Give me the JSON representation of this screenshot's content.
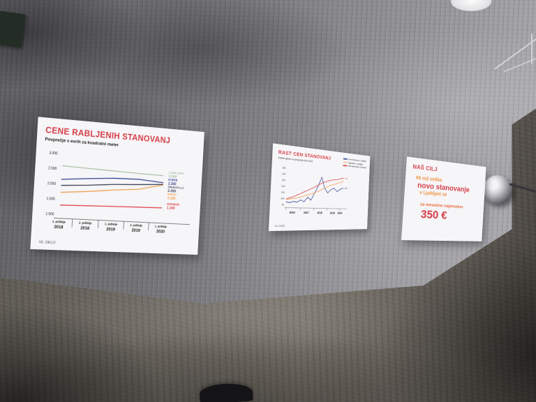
{
  "colors": {
    "accent_red": "#d6404a",
    "accent_orange": "#ef9440",
    "poster_white": "#f6f5f7"
  },
  "posters": {
    "left": {
      "title": "CENE RABLJENIH STANOVANJ",
      "subtitle": "Povprečje v evrih za kvadratni meter",
      "source": "Vir: DELO"
    },
    "middle": {
      "title": "RAST CEN STANOVANJ",
      "subtitle": "Indeks glede na povprečje leta 2015",
      "source": "Vir: GURS"
    },
    "right": {
      "title": "NAŠ CILJ",
      "size_line": "65 m2 veliko",
      "emphasis_line": "novo stanovanje",
      "location_line": "v Ljubljani za",
      "rent_line": "za mesečno najemnino",
      "price": "350 €"
    }
  },
  "chart_data": [
    {
      "type": "line",
      "title": "CENE RABLJENIH STANOVANJ",
      "subtitle": "Povprečje v evrih za kvadratni meter",
      "categories": [
        "1. polletje 2018",
        "2. polletje 2018",
        "1. polletje 2019",
        "2. polletje 2019",
        "1. polletje 2020"
      ],
      "ylim": [
        1000,
        3000
      ],
      "y_ticks": [
        "3.000",
        "2.500",
        "2.000",
        "1.500",
        "1.000"
      ],
      "grid": false,
      "legend_position": "right-inline",
      "series": [
        {
          "name": "LJUBLJANA",
          "end_label": "2.500",
          "color": "#a9bfa6",
          "values": [
            2600,
            2570,
            2545,
            2520,
            2500
          ]
        },
        {
          "name": "KOPER",
          "end_label": "2.260",
          "color": "#2e3f93",
          "values": [
            2150,
            2230,
            2300,
            2320,
            2260
          ]
        },
        {
          "name": "OKOLICA LJ",
          "end_label": "2.200",
          "color": "#3a3f55",
          "values": [
            1950,
            2010,
            2090,
            2140,
            2200
          ]
        },
        {
          "name": "KRANJ",
          "end_label": "2.180",
          "color": "#f0a050",
          "values": [
            1720,
            1800,
            1900,
            1980,
            2180
          ]
        },
        {
          "name": "MARIBOR",
          "end_label": "1.390",
          "color": "#e0474e",
          "values": [
            1300,
            1325,
            1350,
            1370,
            1390
          ]
        }
      ],
      "source": "Vir: DELO"
    },
    {
      "type": "line",
      "title": "RAST CEN STANOVANJ",
      "subtitle": "Indeks glede na povprečje leta 2015",
      "x_start": 2016,
      "x_step": 0.25,
      "xlim": [
        2016,
        2020.4
      ],
      "x_ticks": [
        "2016",
        "2017",
        "2018",
        "2019",
        "2020"
      ],
      "ylim": [
        90,
        150
      ],
      "y_ticks": [
        "150",
        "140",
        "130",
        "120",
        "110",
        "100",
        "90"
      ],
      "grid": false,
      "legend_position": "top-right",
      "series": [
        {
          "name": "cene stanovanj v Ljubljani",
          "end_label": "123",
          "color": "#3b4a9b",
          "values": [
            95,
            94,
            96,
            95,
            99,
            96,
            104,
            99,
            112,
            124,
            140,
            121,
            113,
            119,
            122,
            116,
            121,
            123
          ]
        },
        {
          "name": "najemnine v Ljubljani",
          "end_label": "",
          "color": "#f0a050",
          "values": [
            99,
            100,
            101,
            102,
            104,
            106,
            108,
            110,
            112,
            115,
            118,
            121,
            124,
            127,
            129,
            131,
            133,
            136
          ]
        },
        {
          "name": "cene stanovanj v Sloveniji",
          "end_label": "141",
          "color": "#d9464e",
          "values": [
            100,
            102,
            104,
            107,
            110,
            113,
            116,
            119,
            122,
            126,
            129,
            132,
            134,
            136,
            137,
            138,
            140,
            141
          ]
        }
      ],
      "source": "Vir: GURS"
    }
  ]
}
